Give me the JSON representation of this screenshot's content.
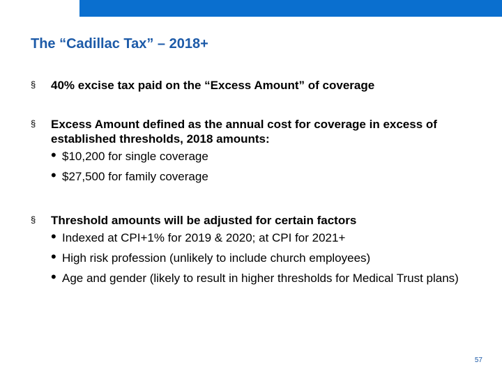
{
  "slide": {
    "title": "The “Cadillac Tax” – 2018+",
    "page_number": "57"
  },
  "bullets": [
    {
      "marker": "§",
      "text": "40% excise tax paid on the “Excess Amount” of coverage",
      "sub_items": []
    },
    {
      "marker": "§",
      "text": "Excess Amount defined as the annual cost for coverage in excess of established thresholds, 2018 amounts:",
      "sub_items": [
        "$10,200 for single coverage",
        "$27,500 for family coverage"
      ]
    },
    {
      "marker": "§",
      "text": "Threshold amounts will be adjusted for certain factors",
      "sub_items": [
        "Indexed at CPI+1% for 2019 & 2020; at CPI for 2021+",
        "High risk profession (unlikely to include church employees)",
        "Age and gender (likely to result in higher thresholds for Medical Trust plans)"
      ]
    }
  ],
  "colors": {
    "accent": "#0a6fcf",
    "title": "#1c5aa8"
  }
}
